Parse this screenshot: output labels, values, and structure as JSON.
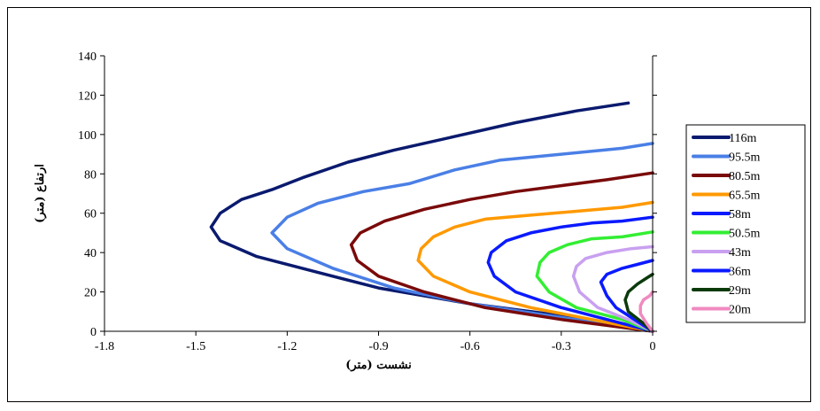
{
  "chart_data": {
    "type": "line",
    "xlabel": "نشست (متر)",
    "ylabel": "ارتفاع (متر)",
    "xlim": [
      -1.8,
      0
    ],
    "ylim": [
      0,
      140
    ],
    "xticks": [
      "-1.8",
      "-1.5",
      "-1.2",
      "-0.9",
      "-0.6",
      "-0.3",
      "0"
    ],
    "yticks": [
      "0",
      "20",
      "40",
      "60",
      "80",
      "100",
      "120",
      "140"
    ],
    "grid": false,
    "legend_position": "right",
    "series": [
      {
        "name": "116m",
        "color": "#0a1a6e",
        "points": [
          [
            0,
            0
          ],
          [
            -0.3,
            8
          ],
          [
            -0.6,
            14
          ],
          [
            -0.9,
            22
          ],
          [
            -1.1,
            30
          ],
          [
            -1.3,
            38
          ],
          [
            -1.42,
            46
          ],
          [
            -1.45,
            53
          ],
          [
            -1.42,
            60
          ],
          [
            -1.35,
            67
          ],
          [
            -1.25,
            72
          ],
          [
            -1.15,
            78
          ],
          [
            -1.0,
            86
          ],
          [
            -0.85,
            92
          ],
          [
            -0.65,
            99
          ],
          [
            -0.45,
            106
          ],
          [
            -0.25,
            112
          ],
          [
            -0.08,
            116
          ]
        ]
      },
      {
        "name": "95.5m",
        "color": "#4a7fe6",
        "points": [
          [
            0,
            0
          ],
          [
            -0.3,
            7
          ],
          [
            -0.6,
            14
          ],
          [
            -0.85,
            22
          ],
          [
            -1.05,
            32
          ],
          [
            -1.2,
            42
          ],
          [
            -1.25,
            50
          ],
          [
            -1.2,
            58
          ],
          [
            -1.1,
            65
          ],
          [
            -0.95,
            71
          ],
          [
            -0.8,
            75
          ],
          [
            -0.65,
            82
          ],
          [
            -0.5,
            87
          ],
          [
            -0.3,
            90
          ],
          [
            -0.1,
            93
          ],
          [
            0,
            95.5
          ]
        ]
      },
      {
        "name": "80.5m",
        "color": "#7a0a0a",
        "points": [
          [
            0,
            0
          ],
          [
            -0.3,
            6
          ],
          [
            -0.55,
            12
          ],
          [
            -0.75,
            20
          ],
          [
            -0.9,
            28
          ],
          [
            -0.97,
            36
          ],
          [
            -0.99,
            44
          ],
          [
            -0.96,
            50
          ],
          [
            -0.88,
            56
          ],
          [
            -0.75,
            62
          ],
          [
            -0.6,
            67
          ],
          [
            -0.45,
            71
          ],
          [
            -0.3,
            74
          ],
          [
            -0.15,
            77
          ],
          [
            0,
            80.5
          ]
        ]
      },
      {
        "name": "65.5m",
        "color": "#ff9900",
        "points": [
          [
            0,
            0
          ],
          [
            -0.2,
            6
          ],
          [
            -0.4,
            12
          ],
          [
            -0.6,
            20
          ],
          [
            -0.72,
            28
          ],
          [
            -0.77,
            36
          ],
          [
            -0.76,
            42
          ],
          [
            -0.72,
            48
          ],
          [
            -0.65,
            53
          ],
          [
            -0.55,
            57
          ],
          [
            -0.4,
            59
          ],
          [
            -0.25,
            61
          ],
          [
            -0.1,
            63
          ],
          [
            0,
            65.5
          ]
        ]
      },
      {
        "name": "58m",
        "color": "#0a1aff",
        "points": [
          [
            0,
            0
          ],
          [
            -0.15,
            6
          ],
          [
            -0.3,
            12
          ],
          [
            -0.45,
            20
          ],
          [
            -0.52,
            28
          ],
          [
            -0.54,
            35
          ],
          [
            -0.53,
            40
          ],
          [
            -0.48,
            46
          ],
          [
            -0.4,
            50
          ],
          [
            -0.3,
            53
          ],
          [
            -0.2,
            55
          ],
          [
            -0.1,
            56
          ],
          [
            0,
            58
          ]
        ]
      },
      {
        "name": "50.5m",
        "color": "#33ee33",
        "points": [
          [
            0,
            0
          ],
          [
            -0.1,
            6
          ],
          [
            -0.25,
            12
          ],
          [
            -0.34,
            20
          ],
          [
            -0.38,
            28
          ],
          [
            -0.37,
            35
          ],
          [
            -0.34,
            40
          ],
          [
            -0.28,
            44
          ],
          [
            -0.2,
            47
          ],
          [
            -0.1,
            48
          ],
          [
            0,
            50.5
          ]
        ]
      },
      {
        "name": "43m",
        "color": "#c9a0f0",
        "points": [
          [
            0,
            0
          ],
          [
            -0.08,
            6
          ],
          [
            -0.18,
            12
          ],
          [
            -0.24,
            20
          ],
          [
            -0.26,
            28
          ],
          [
            -0.25,
            33
          ],
          [
            -0.22,
            37
          ],
          [
            -0.15,
            40
          ],
          [
            -0.07,
            42
          ],
          [
            0,
            43
          ]
        ]
      },
      {
        "name": "36m",
        "color": "#0a1aff",
        "points": [
          [
            0,
            0
          ],
          [
            -0.05,
            5
          ],
          [
            -0.12,
            12
          ],
          [
            -0.15,
            18
          ],
          [
            -0.17,
            25
          ],
          [
            -0.15,
            29
          ],
          [
            -0.1,
            32
          ],
          [
            -0.05,
            34
          ],
          [
            0,
            36
          ]
        ]
      },
      {
        "name": "29m",
        "color": "#0b3a0b",
        "points": [
          [
            0,
            0
          ],
          [
            -0.03,
            4
          ],
          [
            -0.08,
            10
          ],
          [
            -0.09,
            16
          ],
          [
            -0.08,
            20
          ],
          [
            -0.05,
            24
          ],
          [
            -0.02,
            27
          ],
          [
            0,
            29
          ]
        ]
      },
      {
        "name": "20m",
        "color": "#f08ac0",
        "points": [
          [
            0,
            0
          ],
          [
            -0.02,
            4
          ],
          [
            -0.04,
            9
          ],
          [
            -0.04,
            13
          ],
          [
            -0.03,
            16
          ],
          [
            -0.01,
            18
          ],
          [
            0,
            20
          ]
        ]
      }
    ]
  }
}
